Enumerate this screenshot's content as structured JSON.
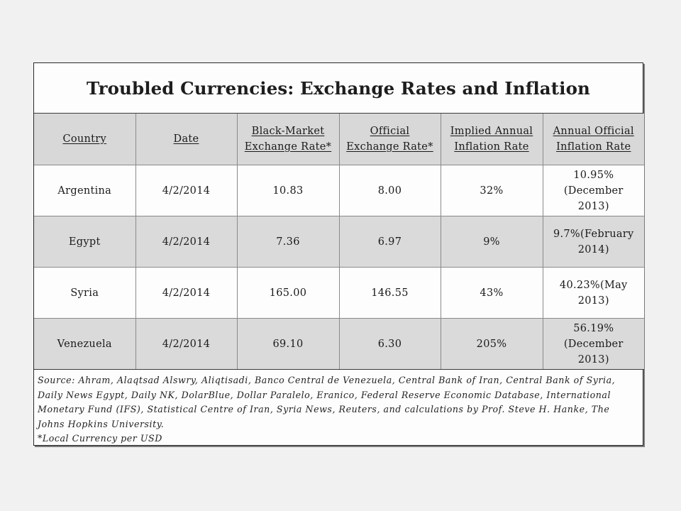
{
  "title": "Troubled Currencies: Exchange Rates and Inflation",
  "table": {
    "headers": [
      [
        "Country"
      ],
      [
        "Date"
      ],
      [
        "Black-Market",
        "Exchange Rate*"
      ],
      [
        "Official",
        "Exchange Rate*"
      ],
      [
        "Implied Annual",
        "Inflation Rate"
      ],
      [
        "Annual Official",
        "Inflation Rate"
      ]
    ],
    "rows": [
      {
        "country": "Argentina",
        "date": "4/2/2014",
        "black_market_rate": "10.83",
        "official_rate": "8.00",
        "implied_inflation": "32%",
        "official_inflation": [
          "10.95%",
          "(December",
          "2013)"
        ]
      },
      {
        "country": "Egypt",
        "date": "4/2/2014",
        "black_market_rate": "7.36",
        "official_rate": "6.97",
        "implied_inflation": "9%",
        "official_inflation": [
          "9.7%(February",
          "2014)"
        ]
      },
      {
        "country": "Syria",
        "date": "4/2/2014",
        "black_market_rate": "165.00",
        "official_rate": "146.55",
        "implied_inflation": "43%",
        "official_inflation": [
          "40.23%(May",
          "2013)"
        ]
      },
      {
        "country": "Venezuela",
        "date": "4/2/2014",
        "black_market_rate": "69.10",
        "official_rate": "6.30",
        "implied_inflation": "205%",
        "official_inflation": [
          "56.19%",
          "(December",
          "2013)"
        ]
      }
    ]
  },
  "source_lines": [
    "Source: Ahram, Alaqtsad Alswry, Aliqtisadi, Banco Central de Venezuela, Central Bank of Iran, Central Bank of Syria,",
    "Daily News Egypt, Daily NK, DolarBlue, Dollar Paralelo, Eranico, Federal Reserve Economic Database, International",
    "Monetary Fund (IFS), Statistical Centre of Iran,  Syria News, Reuters, and calculations by Prof. Steve H. Hanke, The",
    "Johns Hopkins University."
  ],
  "footnote": "*Local Currency per USD"
}
